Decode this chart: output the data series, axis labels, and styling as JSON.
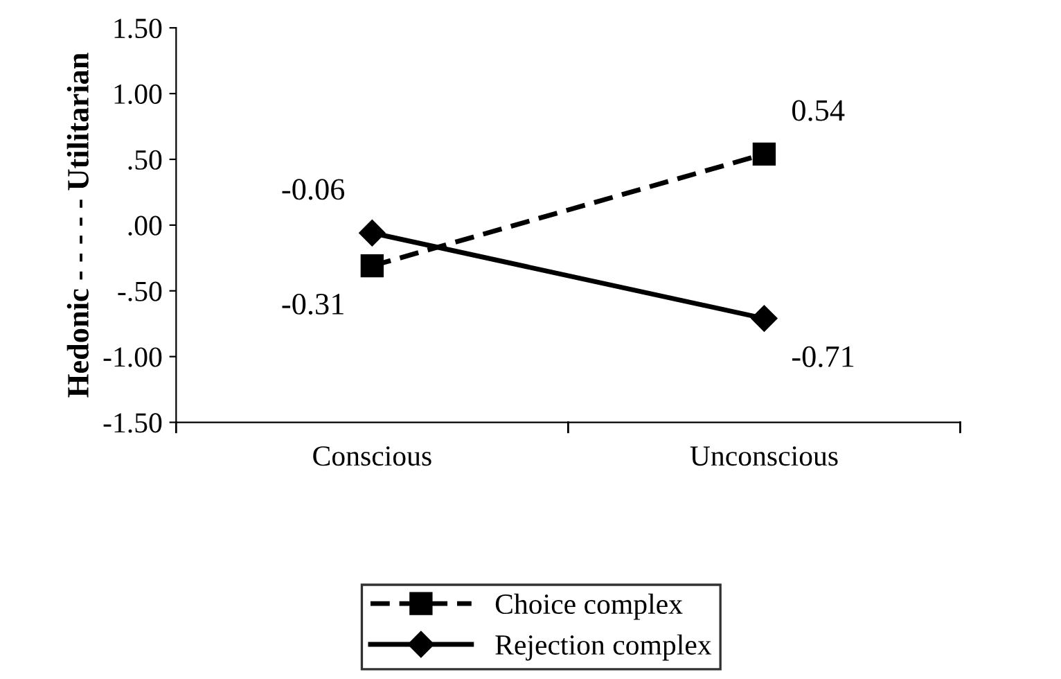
{
  "chart_data": {
    "type": "line",
    "categories": [
      "Conscious",
      "Unconscious"
    ],
    "ylabel": "Hedonic - - - - - Utilitarian",
    "ylim": [
      -1.5,
      1.5
    ],
    "yticks": [
      {
        "value": 1.5,
        "label": "1.50"
      },
      {
        "value": 1.0,
        "label": "1.00"
      },
      {
        "value": 0.5,
        "label": ".50"
      },
      {
        "value": 0.0,
        "label": ".00"
      },
      {
        "value": -0.5,
        "label": "-.50"
      },
      {
        "value": -1.0,
        "label": "-1.00"
      },
      {
        "value": -1.5,
        "label": "-1.50"
      }
    ],
    "series": [
      {
        "name": "Choice complex",
        "color": "#000000",
        "values": [
          -0.31,
          0.54
        ],
        "value_labels": [
          "-0.31",
          "0.54"
        ],
        "marker": "square",
        "line_style": "dashed"
      },
      {
        "name": "Rejection complex",
        "color": "#000000",
        "values": [
          -0.06,
          -0.71
        ],
        "value_labels": [
          "-0.06",
          "-0.71"
        ],
        "marker": "diamond",
        "line_style": "solid"
      }
    ],
    "grid": false,
    "legend": "bottom"
  }
}
